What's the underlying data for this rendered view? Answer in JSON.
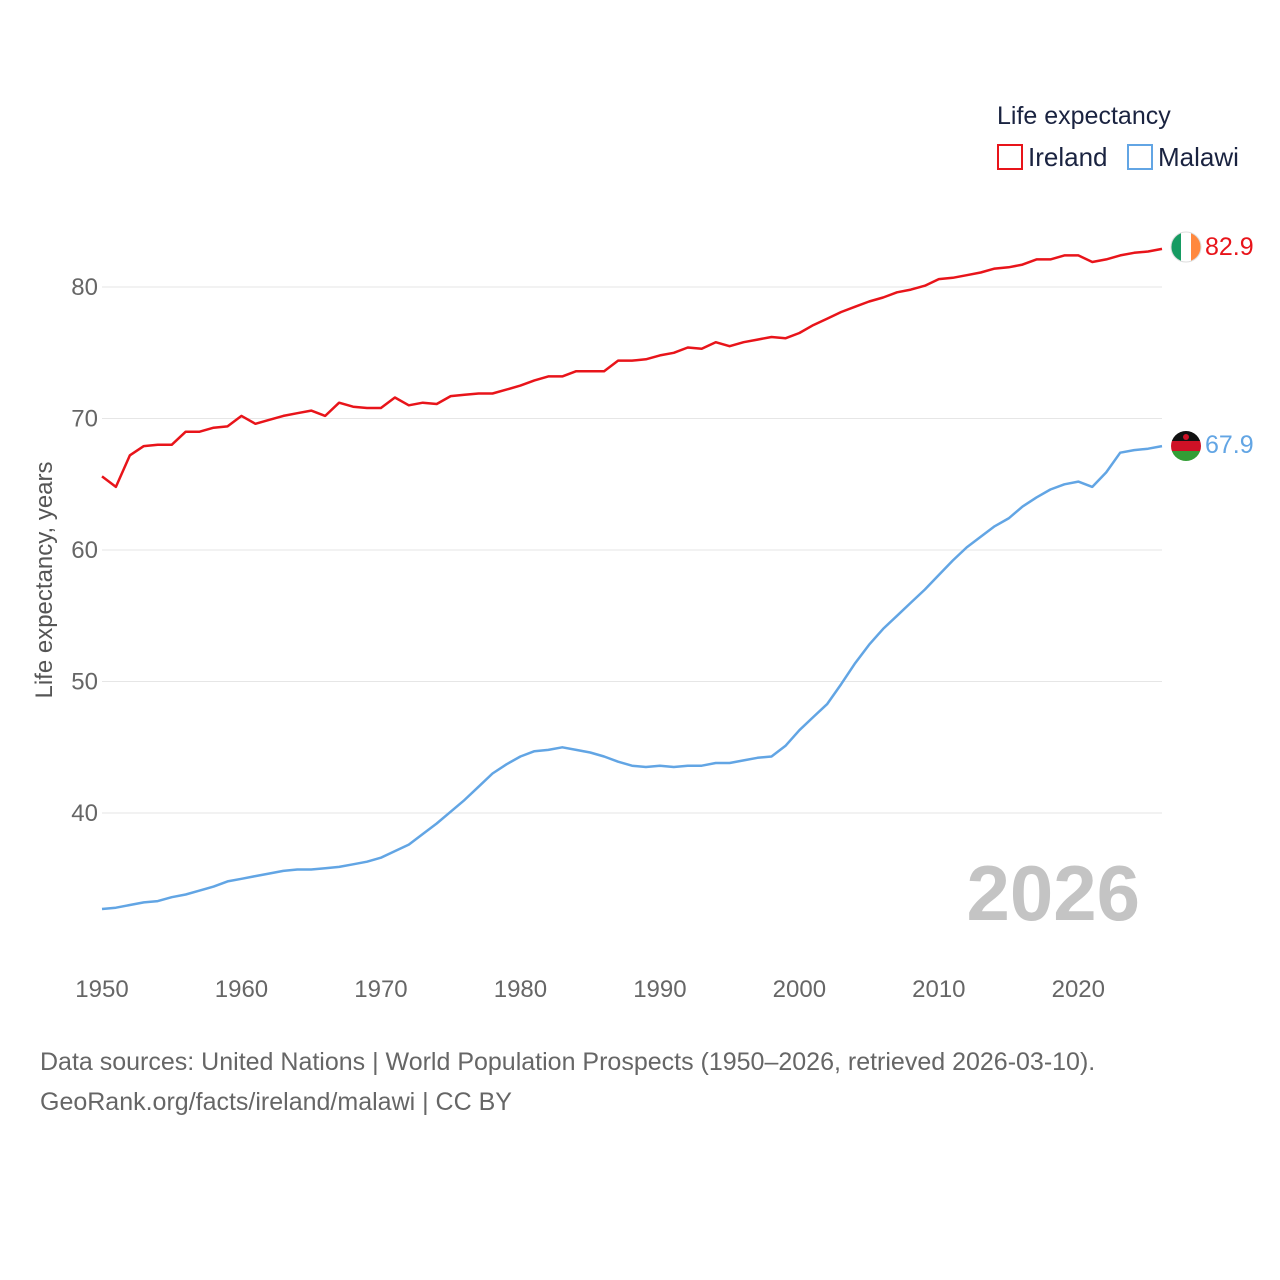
{
  "chart_data": {
    "type": "line",
    "legend_title": "Life expectancy",
    "ylabel": "Life expectancy, years",
    "xlim": [
      1950,
      2026
    ],
    "ylim": [
      28,
      86
    ],
    "yticks": [
      40,
      50,
      60,
      70,
      80
    ],
    "xticks": [
      1950,
      1960,
      1970,
      1980,
      1990,
      2000,
      2010,
      2020
    ],
    "grid": true,
    "legend_position": "top-right",
    "year_label": "2026",
    "x": [
      1950,
      1951,
      1952,
      1953,
      1954,
      1955,
      1956,
      1957,
      1958,
      1959,
      1960,
      1961,
      1962,
      1963,
      1964,
      1965,
      1966,
      1967,
      1968,
      1969,
      1970,
      1971,
      1972,
      1973,
      1974,
      1975,
      1976,
      1977,
      1978,
      1979,
      1980,
      1981,
      1982,
      1983,
      1984,
      1985,
      1986,
      1987,
      1988,
      1989,
      1990,
      1991,
      1992,
      1993,
      1994,
      1995,
      1996,
      1997,
      1998,
      1999,
      2000,
      2001,
      2002,
      2003,
      2004,
      2005,
      2006,
      2007,
      2008,
      2009,
      2010,
      2011,
      2012,
      2013,
      2014,
      2015,
      2016,
      2017,
      2018,
      2019,
      2020,
      2021,
      2022,
      2023,
      2024,
      2025,
      2026
    ],
    "series": [
      {
        "name": "Ireland",
        "color": "#e8141a",
        "end_label": "82.9",
        "flag": "ireland-flag",
        "values": [
          65.6,
          64.8,
          67.2,
          67.9,
          68.0,
          68.0,
          69.0,
          69.0,
          69.3,
          69.4,
          70.2,
          69.6,
          69.9,
          70.2,
          70.4,
          70.6,
          70.2,
          71.2,
          70.9,
          70.8,
          70.8,
          71.6,
          71.0,
          71.2,
          71.1,
          71.7,
          71.8,
          71.9,
          71.9,
          72.2,
          72.5,
          72.9,
          73.2,
          73.2,
          73.6,
          73.6,
          73.6,
          74.4,
          74.4,
          74.5,
          74.8,
          75.0,
          75.4,
          75.3,
          75.8,
          75.5,
          75.8,
          76.0,
          76.2,
          76.1,
          76.5,
          77.1,
          77.6,
          78.1,
          78.5,
          78.9,
          79.2,
          79.6,
          79.8,
          80.1,
          80.6,
          80.7,
          80.9,
          81.1,
          81.4,
          81.5,
          81.7,
          82.1,
          82.1,
          82.4,
          82.4,
          81.9,
          82.1,
          82.4,
          82.6,
          82.7,
          82.9
        ]
      },
      {
        "name": "Malawi",
        "color": "#62a5e4",
        "end_label": "67.9",
        "flag": "malawi-flag",
        "values": [
          32.7,
          32.8,
          33.0,
          33.2,
          33.3,
          33.6,
          33.8,
          34.1,
          34.4,
          34.8,
          35.0,
          35.2,
          35.4,
          35.6,
          35.7,
          35.7,
          35.8,
          35.9,
          36.1,
          36.3,
          36.6,
          37.1,
          37.6,
          38.4,
          39.2,
          40.1,
          41.0,
          42.0,
          43.0,
          43.7,
          44.3,
          44.7,
          44.8,
          45.0,
          44.8,
          44.6,
          44.3,
          43.9,
          43.6,
          43.5,
          43.6,
          43.5,
          43.6,
          43.6,
          43.8,
          43.8,
          44.0,
          44.2,
          44.3,
          45.1,
          46.3,
          47.3,
          48.3,
          49.8,
          51.4,
          52.8,
          54.0,
          55.0,
          56.0,
          57.0,
          58.1,
          59.2,
          60.2,
          61.0,
          61.8,
          62.4,
          63.3,
          64.0,
          64.6,
          65.0,
          65.2,
          64.8,
          65.9,
          67.4,
          67.6,
          67.7,
          67.9
        ]
      }
    ]
  },
  "source_line_1": "Data sources: United Nations | World Population Prospects (1950–2026, retrieved 2026-03-10).",
  "source_line_2": "GeoRank.org/facts/ireland/malawi | CC BY"
}
